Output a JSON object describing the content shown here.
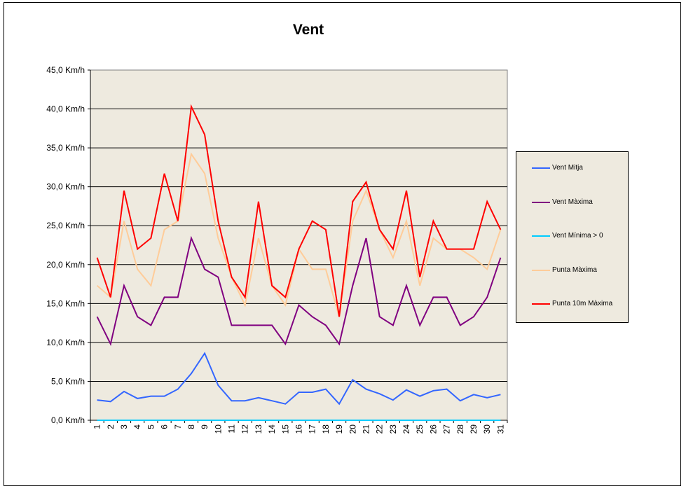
{
  "chart_data": {
    "type": "line",
    "title": "Vent",
    "xlabel": "",
    "ylabel": "",
    "x": [
      "1",
      "2",
      "3",
      "4",
      "5",
      "6",
      "7",
      "8",
      "9",
      "10",
      "11",
      "12",
      "13",
      "14",
      "15",
      "16",
      "17",
      "18",
      "19",
      "20",
      "21",
      "22",
      "23",
      "24",
      "25",
      "26",
      "27",
      "28",
      "29",
      "30",
      "31"
    ],
    "ylim": [
      0,
      45
    ],
    "y_ticks": [
      {
        "value": 0,
        "label": "0,0 Km/h"
      },
      {
        "value": 5,
        "label": "5,0 Km/h"
      },
      {
        "value": 10,
        "label": "10,0 Km/h"
      },
      {
        "value": 15,
        "label": "15,0 Km/h"
      },
      {
        "value": 20,
        "label": "20,0 Km/h"
      },
      {
        "value": 25,
        "label": "25,0 Km/h"
      },
      {
        "value": 30,
        "label": "30,0 Km/h"
      },
      {
        "value": 35,
        "label": "35,0 Km/h"
      },
      {
        "value": 40,
        "label": "40,0 Km/h"
      },
      {
        "value": 45,
        "label": "45,0 Km/h"
      }
    ],
    "grid": true,
    "legend_position": "right",
    "plot_background": "#eeeadf",
    "series": [
      {
        "name": "Vent Mitja",
        "color": "#3366ff",
        "values": [
          2.6,
          2.4,
          3.7,
          2.8,
          3.1,
          3.1,
          4.0,
          6.0,
          8.6,
          4.5,
          2.5,
          2.5,
          2.9,
          2.5,
          2.1,
          3.6,
          3.6,
          4.0,
          2.1,
          5.2,
          4.0,
          3.4,
          2.6,
          3.9,
          3.1,
          3.8,
          4.0,
          2.5,
          3.3,
          2.9,
          3.3
        ]
      },
      {
        "name": "Vent Màxima",
        "color": "#800080",
        "values": [
          13.3,
          9.8,
          17.3,
          13.3,
          12.2,
          15.8,
          15.8,
          23.4,
          19.4,
          18.4,
          12.2,
          12.2,
          12.2,
          12.2,
          9.8,
          14.8,
          13.3,
          12.2,
          9.8,
          17.3,
          23.4,
          13.3,
          12.2,
          17.3,
          12.2,
          15.8,
          15.8,
          12.2,
          13.3,
          15.8,
          20.9
        ]
      },
      {
        "name": "Vent Mínima > 0",
        "color": "#00ccff",
        "values": [
          0,
          0,
          0,
          0,
          0,
          0,
          0,
          0,
          0,
          0,
          0,
          0,
          0,
          0,
          0,
          0,
          0,
          0,
          0,
          0,
          0,
          0,
          0,
          0,
          0,
          0,
          0,
          0,
          0,
          0,
          0
        ]
      },
      {
        "name": "Punta Màxima",
        "color": "#ffcc99",
        "values": [
          17.3,
          15.8,
          25.6,
          19.4,
          17.3,
          24.5,
          25.6,
          34.2,
          31.7,
          23.4,
          18.4,
          14.8,
          23.4,
          17.3,
          14.8,
          22.0,
          19.4,
          19.4,
          13.3,
          25.6,
          29.5,
          24.5,
          20.9,
          25.6,
          17.3,
          23.4,
          22.0,
          22.0,
          20.9,
          19.4,
          24.5
        ]
      },
      {
        "name": "Punta 10m Màxima",
        "color": "#ff0000",
        "values": [
          20.9,
          15.8,
          29.5,
          22.0,
          23.4,
          31.7,
          25.6,
          40.3,
          36.7,
          25.6,
          18.4,
          15.8,
          28.1,
          17.3,
          15.8,
          22.0,
          25.6,
          24.5,
          13.3,
          28.1,
          30.6,
          24.5,
          22.0,
          29.5,
          18.4,
          25.6,
          22.0,
          22.0,
          22.0,
          28.1,
          24.5
        ]
      }
    ]
  }
}
